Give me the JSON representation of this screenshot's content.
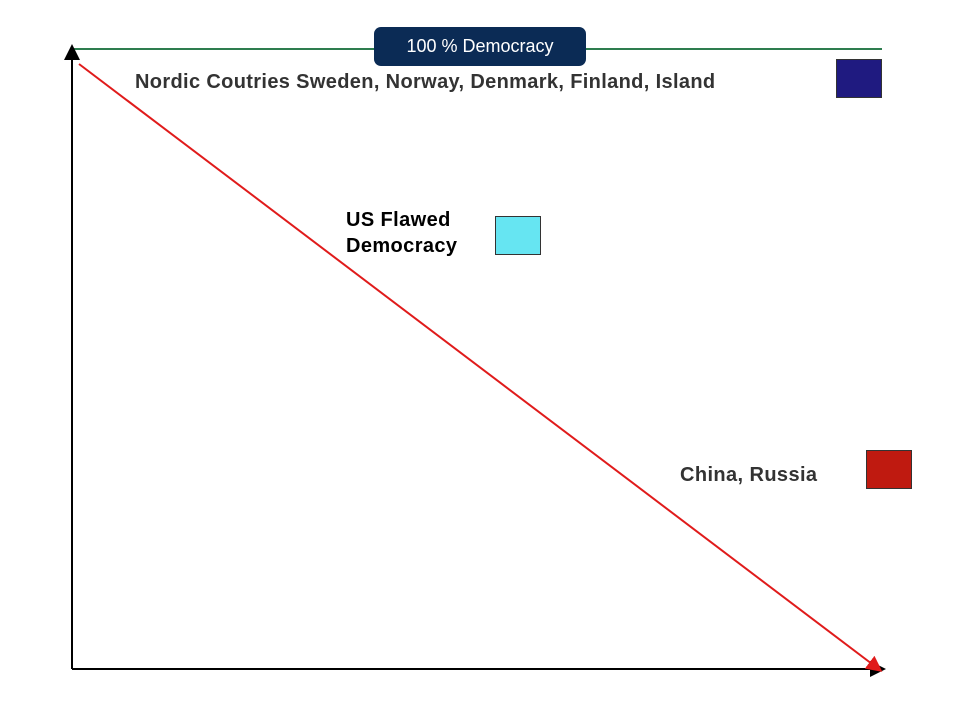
{
  "header": {
    "title": "100 % Democracy"
  },
  "markers": {
    "nordic": {
      "label": "Nordic Coutries Sweden, Norway, Denmark, Finland, Island",
      "color": "#1f1a80"
    },
    "us": {
      "label_line1": "US Flawed",
      "label_line2": "Democracy",
      "color": "#66e5f2"
    },
    "china": {
      "label": "China, Russia",
      "color": "#bf1a10"
    }
  },
  "colors": {
    "pill_background": "#0b2b55",
    "top_line": "#2e7d4f",
    "trend_line": "#e01b1b",
    "axis": "#000000",
    "label_text_dark": "#333333",
    "label_text_black": "#000000"
  }
}
